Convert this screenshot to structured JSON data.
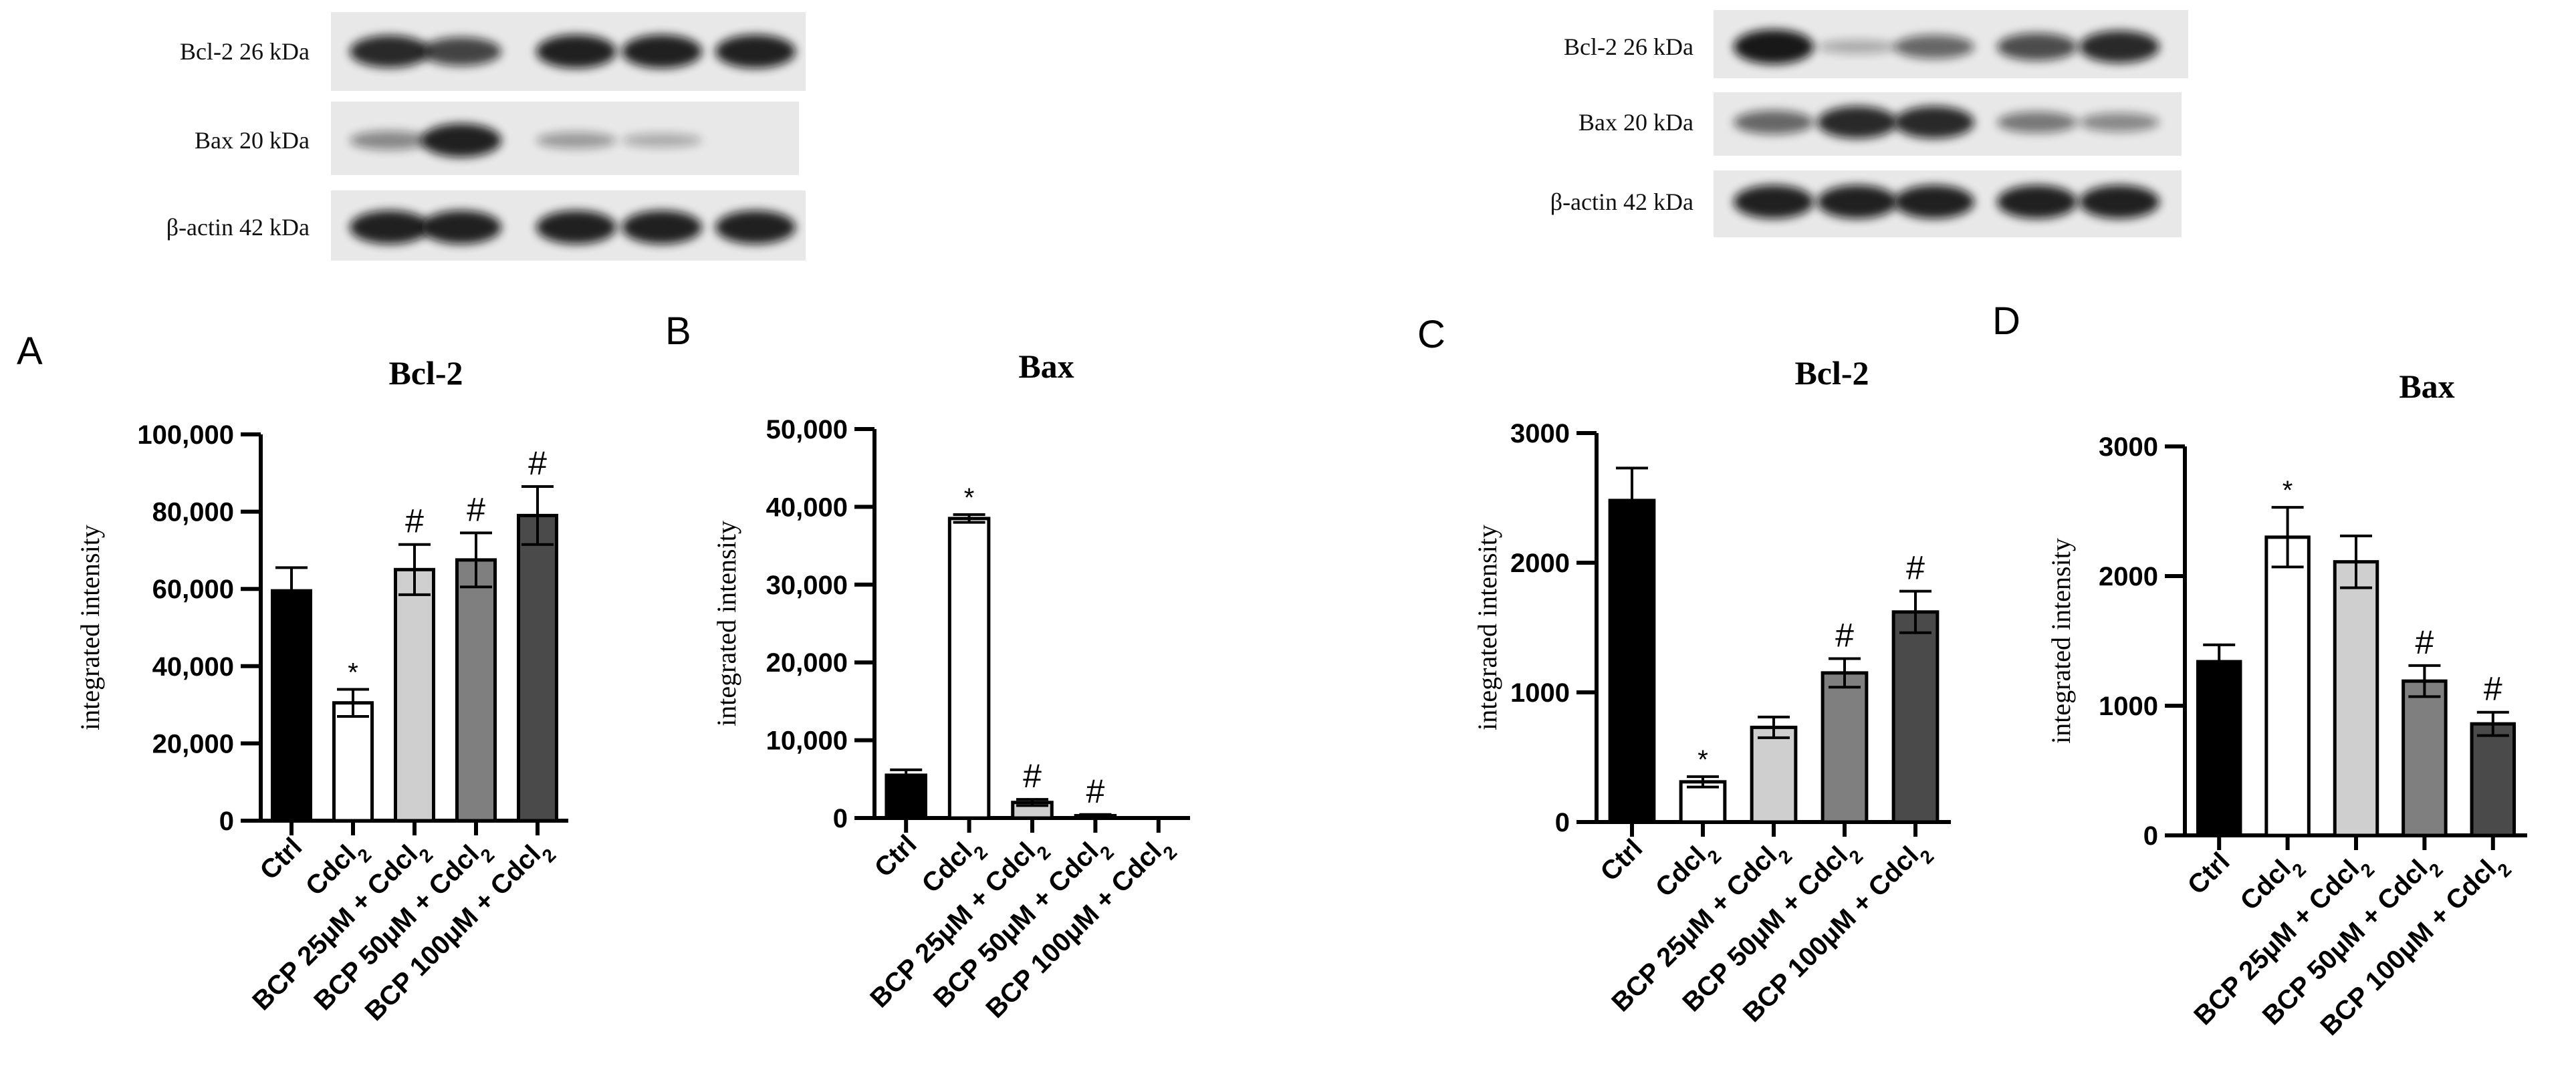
{
  "colors": {
    "ctrl": "#000000",
    "cdcl2": "#ffffff",
    "bcp25": "#cfcfcf",
    "bcp50": "#7f7f7f",
    "bcp100": "#4a4a4a",
    "axis": "#000000",
    "blot_bg": "#e8e8e8",
    "blot_band": "#111111"
  },
  "blots": [
    {
      "labels": [
        "Bcl-2 26 kDa",
        "Bax 20 kDa",
        "β-actin 42 kDa"
      ],
      "band_intensity": [
        [
          0.9,
          0.75,
          0.95,
          0.95,
          0.95
        ],
        [
          0.35,
          0.95,
          0.25,
          0.15,
          0.0
        ],
        [
          0.95,
          0.95,
          0.95,
          0.95,
          0.95
        ]
      ]
    },
    {
      "labels": [
        "Bcl-2 26 kDa",
        "Bax 20 kDa",
        "β-actin 42 kDa"
      ],
      "band_intensity": [
        [
          1.0,
          0.15,
          0.55,
          0.7,
          0.9
        ],
        [
          0.55,
          0.9,
          0.9,
          0.45,
          0.35
        ],
        [
          0.95,
          0.95,
          0.95,
          0.95,
          0.95
        ]
      ]
    }
  ],
  "chart_data": [
    {
      "panel": "A",
      "type": "bar",
      "title": "Bcl-2",
      "xlabel": "",
      "ylabel": "integrated intensity",
      "ylim": [
        0,
        100000
      ],
      "yticks": [
        "0",
        "20,000",
        "40,000",
        "60,000",
        "80,000",
        "100,000"
      ],
      "categories": [
        "Ctrl",
        "Cdcl",
        "BCP 25μM + Cdcl",
        "BCP 50μM + Cdcl",
        "BCP 100μM + Cdcl"
      ],
      "subscript": "2",
      "values": [
        59500,
        30500,
        65000,
        67500,
        79000
      ],
      "errors": [
        6000,
        3500,
        6500,
        7000,
        7500
      ],
      "annotations": [
        "",
        "*",
        "#",
        "#",
        "#"
      ]
    },
    {
      "panel": "B",
      "type": "bar",
      "title": "Bax",
      "xlabel": "",
      "ylabel": "integrated intensity",
      "ylim": [
        0,
        50000
      ],
      "yticks": [
        "0",
        "10,000",
        "20,000",
        "30,000",
        "40,000",
        "50,000"
      ],
      "categories": [
        "Ctrl",
        "Cdcl",
        "BCP 25μM + Cdcl",
        "BCP 50μM + Cdcl",
        "BCP 100μM + Cdcl"
      ],
      "subscript": "2",
      "values": [
        5500,
        38500,
        2000,
        300,
        0
      ],
      "errors": [
        700,
        500,
        400,
        150,
        0
      ],
      "annotations": [
        "",
        "*",
        "#",
        "#",
        ""
      ]
    },
    {
      "panel": "C",
      "type": "bar",
      "title": "Bcl-2",
      "xlabel": "",
      "ylabel": "integrated intensity",
      "ylim": [
        0,
        3000
      ],
      "yticks": [
        "0",
        "1000",
        "2000",
        "3000"
      ],
      "categories": [
        "Ctrl",
        "Cdcl",
        "BCP 25μM + Cdcl",
        "BCP 50μM + Cdcl",
        "BCP 100μM + Cdcl"
      ],
      "subscript": "2",
      "values": [
        2480,
        310,
        730,
        1150,
        1620
      ],
      "errors": [
        250,
        40,
        80,
        110,
        160
      ],
      "annotations": [
        "",
        "*",
        "",
        "#",
        "#"
      ]
    },
    {
      "panel": "D",
      "type": "bar",
      "title": "Bax",
      "xlabel": "",
      "ylabel": "integrated intensity",
      "ylim": [
        0,
        3000
      ],
      "yticks": [
        "0",
        "1000",
        "2000",
        "3000"
      ],
      "categories": [
        "Ctrl",
        "Cdcl",
        "BCP 25μM + Cdcl",
        "BCP 50μM + Cdcl",
        "BCP 100μM + Cdcl"
      ],
      "subscript": "2",
      "values": [
        1340,
        2300,
        2110,
        1190,
        860
      ],
      "errors": [
        130,
        230,
        200,
        120,
        90
      ],
      "annotations": [
        "",
        "*",
        "",
        "#",
        "#"
      ]
    }
  ]
}
